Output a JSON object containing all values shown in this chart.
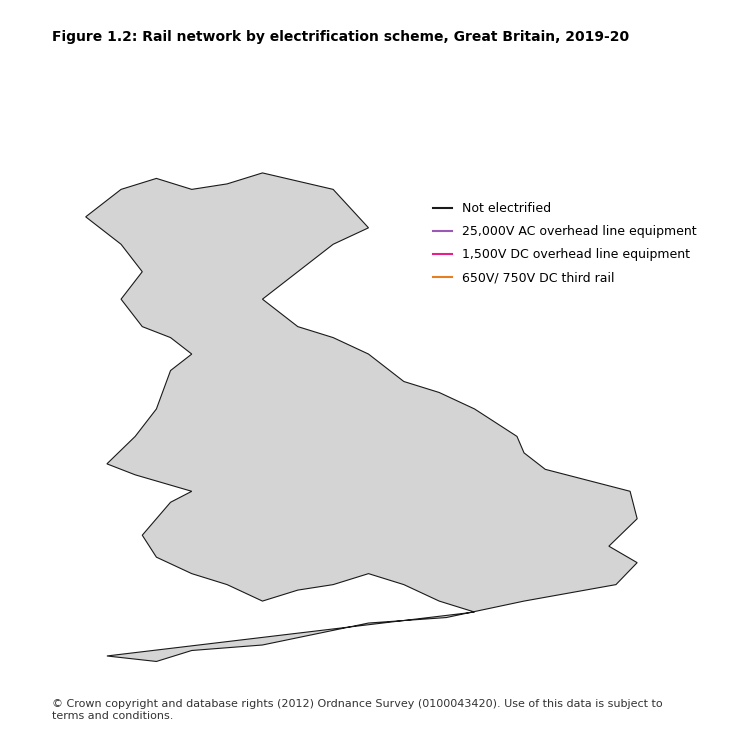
{
  "title": "Figure 1.2: Rail network by electrification scheme, Great Britain, 2019-20",
  "title_fontsize": 10,
  "title_fontweight": "bold",
  "copyright_text": "© Crown copyright and database rights (2012) Ordnance Survey (0100043420). Use of this data is subject to\nterms and conditions.",
  "copyright_fontsize": 8,
  "legend_labels": [
    "Not electrified",
    "25,000V AC overhead line equipment",
    "1,500V DC overhead line equipment",
    "650V/ 750V DC third rail"
  ],
  "legend_colors": [
    "#1a1a1a",
    "#9b59b6",
    "#e91e8c",
    "#e67e22"
  ],
  "background_color": "#ffffff",
  "map_fill_color": "#d4d4d4",
  "map_edge_color": "#1a1a1a",
  "map_edge_width": 0.5,
  "fig_width": 7.37,
  "fig_height": 7.43,
  "dpi": 100
}
